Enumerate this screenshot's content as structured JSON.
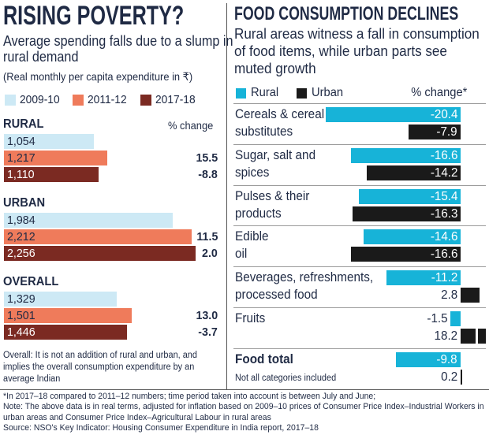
{
  "chart_data": [
    {
      "type": "bar",
      "orientation": "horizontal",
      "title": "RISING POVERTY?",
      "subtitle": "Average spending falls due to a slump in rural demand",
      "unit_note": "(Real monthly per capita expenditure in ₹)",
      "categories": [
        "RURAL",
        "URBAN",
        "OVERALL"
      ],
      "change_header": "% change",
      "series": [
        {
          "name": "2009-10",
          "color": "#cde9f5",
          "label_color": "#1f2a44",
          "values": [
            1054,
            1984,
            1329
          ],
          "value_labels": [
            "1,054",
            "1,984",
            "1,329"
          ]
        },
        {
          "name": "2011-12",
          "color": "#ef7b5b",
          "label_color": "#1f2a44",
          "values": [
            1217,
            2212,
            1501
          ],
          "value_labels": [
            "1,217",
            "2,212",
            "1,501"
          ],
          "change_values": [
            15.5,
            11.5,
            13.0
          ],
          "change_labels": [
            "15.5",
            "11.5",
            "13.0"
          ]
        },
        {
          "name": "2017-18",
          "color": "#7b2a22",
          "label_color": "#ffffff",
          "values": [
            1110,
            2256,
            1446
          ],
          "value_labels": [
            "1,110",
            "2,256",
            "1,446"
          ],
          "change_values": [
            -8.8,
            2.0,
            -3.7
          ],
          "change_labels": [
            "-8.8",
            "2.0",
            "-3.7"
          ]
        }
      ],
      "note": "Overall: It is not an addition of rural and urban, and implies the overall consumption expenditure by an average Indian"
    },
    {
      "type": "bar",
      "orientation": "horizontal",
      "title": "FOOD CONSUMPTION DECLINES",
      "subtitle": "Rural areas witness a fall in consumption of food items, while urban parts see muted growth",
      "value_header": "% change*",
      "categories": [
        "Cereals & cereal substitutes",
        "Sugar, salt and spices",
        "Pulses & their products",
        "Edible oil",
        "Beverages, refreshments, processed food",
        "Fruits",
        "Food total"
      ],
      "series": [
        {
          "name": "Rural",
          "color": "#17b3d8",
          "values": [
            -20.4,
            -16.6,
            -15.4,
            -14.6,
            -11.2,
            -1.5,
            -9.8
          ]
        },
        {
          "name": "Urban",
          "color": "#1a1a1a",
          "values": [
            -7.9,
            -14.2,
            -16.3,
            -16.6,
            2.8,
            18.2,
            0.2
          ]
        }
      ],
      "note": "Not all categories included"
    }
  ],
  "footnote": "*In 2017–18 compared to 2011–12 numbers; time period taken into account is between July and June;",
  "note": "Note: The above data is in real terms, adjusted for inflation based on 2009–10 prices of Consumer Price Index–Industrial Workers in urban areas and Consumer Price Index–Agricultural Labour in rural areas",
  "source": "Source: NSO's Key Indicator: Housing Consumer Expenditure in India report, 2017–18"
}
